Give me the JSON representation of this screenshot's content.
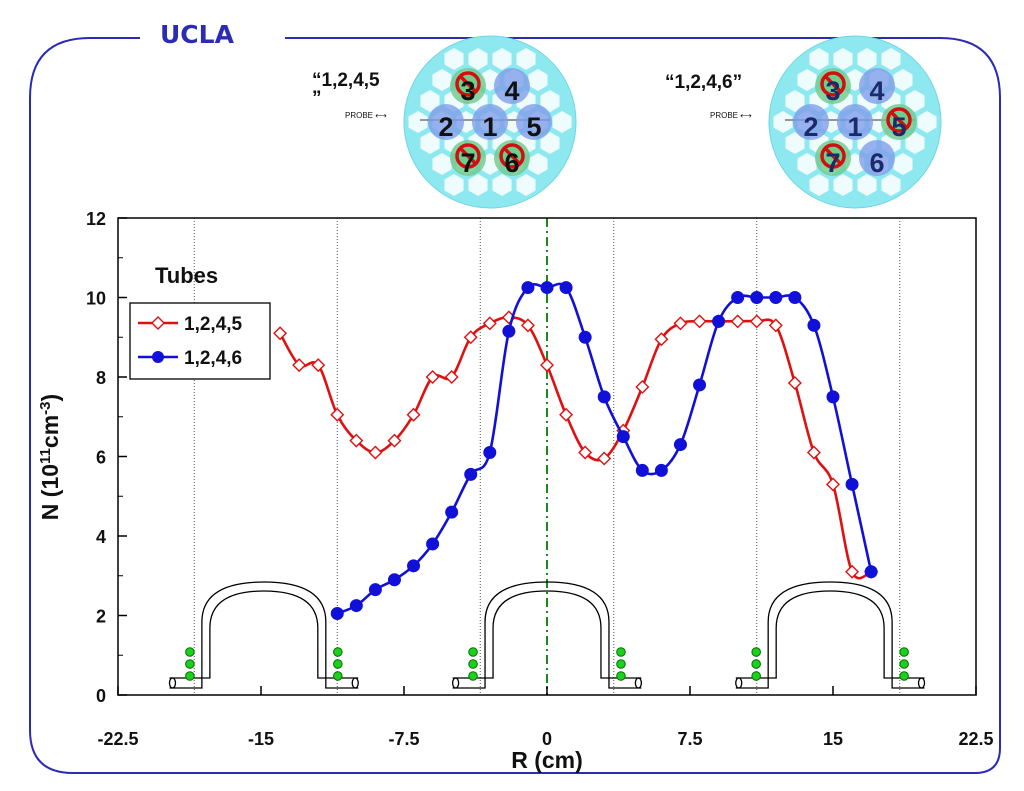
{
  "header": {
    "brand": "UCLA"
  },
  "diagrams": [
    {
      "label": "“1,2,4,5\n”",
      "probe_label": "PROBE",
      "tubes": [
        {
          "n": "3",
          "status": "off"
        },
        {
          "n": "4",
          "status": "on"
        },
        {
          "n": "2",
          "status": "on"
        },
        {
          "n": "1",
          "status": "on"
        },
        {
          "n": "5",
          "status": "on"
        },
        {
          "n": "7",
          "status": "off"
        },
        {
          "n": "6",
          "status": "off"
        }
      ]
    },
    {
      "label": "“1,2,4,6”",
      "probe_label": "PROBE",
      "tubes": [
        {
          "n": "3",
          "status": "off"
        },
        {
          "n": "4",
          "status": "on"
        },
        {
          "n": "2",
          "status": "on"
        },
        {
          "n": "1",
          "status": "on"
        },
        {
          "n": "5",
          "status": "off"
        },
        {
          "n": "7",
          "status": "off"
        },
        {
          "n": "6",
          "status": "on"
        }
      ]
    }
  ],
  "colors": {
    "brand": "#2b2bb5",
    "series_a": "#e01010",
    "series_b": "#1010d8",
    "centerline": "#1a8a1a",
    "frame": "#2b2bb5"
  },
  "chart_data": {
    "type": "line",
    "title": "",
    "xlabel": "R (cm)",
    "ylabel": "N (10^11cm^-3)",
    "xlim": [
      -22.5,
      22.5
    ],
    "ylim": [
      0,
      12
    ],
    "xticks": [
      "-22.5",
      "-15",
      "-7.5",
      "0",
      "7.5",
      "15",
      "22.5"
    ],
    "yticks": [
      "0",
      "2",
      "4",
      "6",
      "8",
      "10",
      "12"
    ],
    "legend": {
      "title": "Tubes",
      "position": "top-left"
    },
    "vertical_dotted_lines_x": [
      -18.5,
      -11,
      -3.5,
      3.5,
      11,
      18.5
    ],
    "centerline_x": 0,
    "series": [
      {
        "name": "1,2,4,5",
        "marker": "diamond-open",
        "color": "#e01010",
        "x": [
          -14,
          -13,
          -12,
          -11,
          -10,
          -9,
          -8,
          -7,
          -6,
          -5,
          -4,
          -3,
          -2,
          -1,
          0,
          1,
          2,
          3,
          4,
          5,
          6,
          7,
          8,
          9,
          10,
          11,
          12,
          13,
          14,
          15,
          16,
          17
        ],
        "y": [
          9.1,
          8.3,
          8.3,
          7.05,
          6.4,
          6.1,
          6.4,
          7.05,
          8.0,
          8.0,
          9.0,
          9.35,
          9.5,
          9.3,
          8.3,
          7.05,
          6.1,
          5.95,
          6.65,
          7.75,
          8.95,
          9.35,
          9.4,
          9.4,
          9.4,
          9.4,
          9.3,
          7.85,
          6.1,
          5.3,
          3.1,
          3.1
        ]
      },
      {
        "name": "1,2,4,6",
        "marker": "circle-filled",
        "color": "#1010d8",
        "x": [
          -11,
          -10,
          -9,
          -8,
          -7,
          -6,
          -5,
          -4,
          -3,
          -2,
          -1,
          0,
          1,
          2,
          3,
          4,
          5,
          6,
          7,
          8,
          9,
          10,
          11,
          12,
          13,
          14,
          15,
          16,
          17
        ],
        "y": [
          2.05,
          2.25,
          2.65,
          2.9,
          3.25,
          3.8,
          4.6,
          5.55,
          6.1,
          9.15,
          10.25,
          10.25,
          10.25,
          9.0,
          7.5,
          6.5,
          5.65,
          5.65,
          6.3,
          7.8,
          9.4,
          10.0,
          10.0,
          10.0,
          10.0,
          9.3,
          7.5,
          5.3,
          3.1
        ]
      }
    ]
  }
}
